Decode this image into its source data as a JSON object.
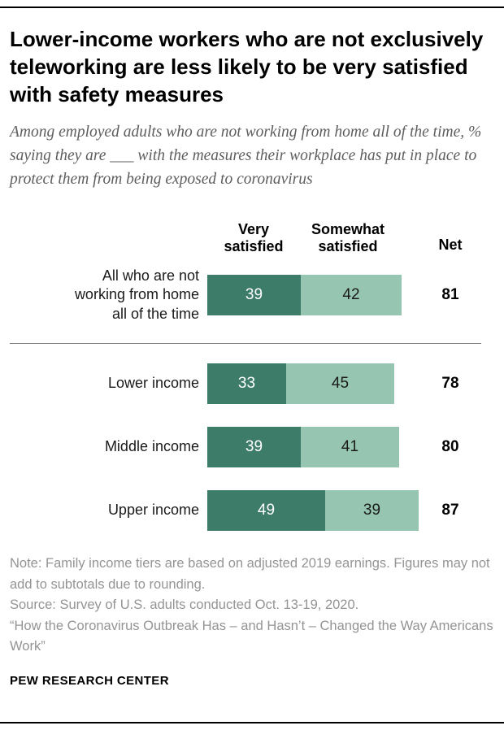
{
  "page": {
    "title": "Lower-income workers who are not exclusively teleworking are less likely to be very satisfied with safety measures",
    "subtitle": "Among employed adults who are not working from home all of the time, % saying they are ___ with the measures their workplace has put in place to protect them from being exposed to coronavirus",
    "note_line1": "Note: Family income tiers are based on adjusted 2019 earnings. Figures may not add to subtotals due to rounding.",
    "note_line2": "Source: Survey of U.S. adults conducted Oct. 13-19, 2020.",
    "note_line3": "“How the Coronavirus Outbreak Has – and Hasn’t – Changed the Way Americans Work”",
    "branding": "PEW RESEARCH CENTER"
  },
  "chart_data": {
    "type": "bar",
    "orientation": "horizontal",
    "stacked": true,
    "title": "Lower-income workers who are not exclusively teleworking are less likely to be very satisfied with safety measures",
    "legend": [
      "Very satisfied",
      "Somewhat satisfied"
    ],
    "legend_position": "top",
    "net_label": "Net",
    "categories": [
      "All who are not working from home all of the time",
      "Lower income",
      "Middle income",
      "Upper income"
    ],
    "series": [
      {
        "name": "Very satisfied",
        "color": "#3e7c6a",
        "values": [
          39,
          33,
          39,
          49
        ]
      },
      {
        "name": "Somewhat satisfied",
        "color": "#96c6b2",
        "values": [
          42,
          45,
          41,
          39
        ]
      }
    ],
    "net_values": [
      81,
      78,
      80,
      87
    ],
    "xlim": [
      0,
      100
    ],
    "grid": false,
    "value_labels": "inside",
    "divider_after_category_index": 0
  },
  "colors": {
    "very_satisfied": "#3e7c6a",
    "somewhat_satisfied": "#96c6b2",
    "title_text": "#000000",
    "subtitle_text": "#5e5e5e",
    "note_text": "#949494",
    "rule": "#000000"
  }
}
